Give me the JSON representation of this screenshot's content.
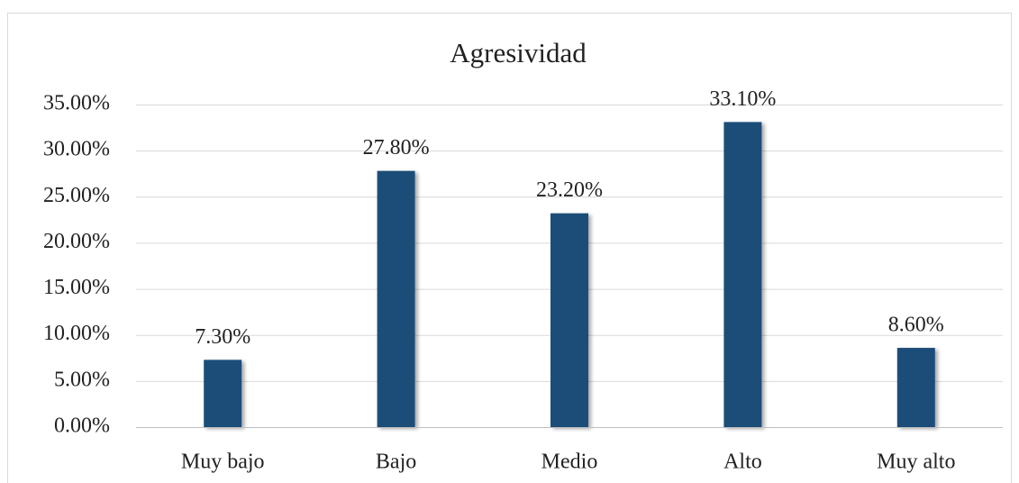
{
  "chart_data": {
    "type": "bar",
    "title": "Agresividad",
    "categories": [
      "Muy bajo",
      "Bajo",
      "Medio",
      "Alto",
      "Muy alto"
    ],
    "values": [
      7.3,
      27.8,
      23.2,
      33.1,
      8.6
    ],
    "value_labels": [
      "7.30%",
      "27.80%",
      "23.20%",
      "33.10%",
      "8.60%"
    ],
    "color": "#1f4e79",
    "ylim": [
      0,
      35
    ],
    "yticks": [
      {
        "value": 0,
        "label": "0.00%"
      },
      {
        "value": 5,
        "label": "5.00%"
      },
      {
        "value": 10,
        "label": "10.00%"
      },
      {
        "value": 15,
        "label": "15.00%"
      },
      {
        "value": 20,
        "label": "20.00%"
      },
      {
        "value": 25,
        "label": "25.00%"
      },
      {
        "value": 30,
        "label": "30.00%"
      },
      {
        "value": 35,
        "label": "35.00%"
      }
    ],
    "grid": true
  }
}
